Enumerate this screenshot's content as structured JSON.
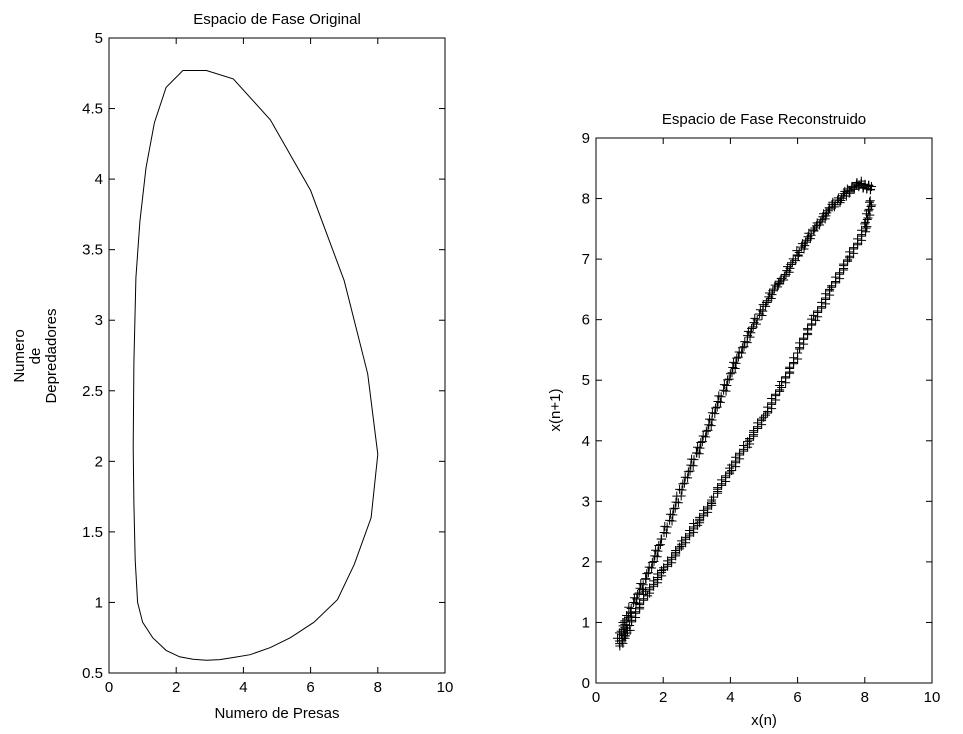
{
  "chart_data": [
    {
      "type": "line",
      "title": "Espacio de Fase Original",
      "xlabel": "Numero de Presas",
      "ylabel_lines": [
        "Numero",
        "de",
        "Depredadores"
      ],
      "xlim": [
        0,
        10
      ],
      "ylim": [
        0.5,
        5
      ],
      "xticks": [
        "0",
        "2",
        "4",
        "6",
        "8",
        "10"
      ],
      "yticks": [
        "0.5",
        "1",
        "1.5",
        "2",
        "2.5",
        "3",
        "3.5",
        "4",
        "4.5",
        "5"
      ],
      "grid": false,
      "line_color": "#000000",
      "x": [
        2.9,
        3.7,
        4.8,
        6.0,
        7.0,
        7.7,
        8.0,
        7.8,
        7.3,
        6.8,
        6.1,
        5.4,
        4.8,
        4.2,
        3.7,
        3.3,
        2.9,
        2.5,
        2.1,
        1.7,
        1.3,
        1.0,
        0.85,
        0.78,
        0.74,
        0.72,
        0.74,
        0.8,
        0.92,
        1.1,
        1.35,
        1.7,
        2.2,
        2.9
      ],
      "y": [
        4.77,
        4.71,
        4.42,
        3.92,
        3.28,
        2.62,
        2.05,
        1.6,
        1.27,
        1.02,
        0.86,
        0.75,
        0.68,
        0.63,
        0.61,
        0.595,
        0.59,
        0.597,
        0.615,
        0.66,
        0.75,
        0.86,
        1.0,
        1.3,
        1.7,
        2.1,
        2.7,
        3.3,
        3.7,
        4.08,
        4.4,
        4.65,
        4.77,
        4.77
      ]
    },
    {
      "type": "scatter",
      "title": "Espacio de Fase Reconstruido",
      "xlabel": "x(n)",
      "ylabel": "x(n+1)",
      "xlim": [
        0,
        10
      ],
      "ylim": [
        0,
        9
      ],
      "xticks": [
        "0",
        "2",
        "4",
        "6",
        "8",
        "10"
      ],
      "yticks": [
        "0",
        "1",
        "2",
        "3",
        "4",
        "5",
        "6",
        "7",
        "8",
        "9"
      ],
      "grid": false,
      "marker": "+",
      "marker_color": "#000000",
      "upper_branch": {
        "x": [
          0.7,
          1.0,
          1.5,
          2.0,
          2.5,
          3.0,
          3.5,
          4.0,
          4.5,
          5.0,
          5.5,
          6.0,
          6.5,
          7.0,
          7.5,
          7.9,
          8.2
        ],
        "y": [
          0.8,
          1.2,
          1.75,
          2.4,
          3.1,
          3.8,
          4.45,
          5.1,
          5.7,
          6.2,
          6.65,
          7.1,
          7.5,
          7.85,
          8.1,
          8.25,
          8.2
        ]
      },
      "lower_branch": {
        "x": [
          8.2,
          8.0,
          7.5,
          7.0,
          6.5,
          6.0,
          5.5,
          5.0,
          4.5,
          4.0,
          3.5,
          3.0,
          2.5,
          2.0,
          1.5,
          1.0,
          0.7
        ],
        "y": [
          8.0,
          7.5,
          7.0,
          6.5,
          6.0,
          5.45,
          4.9,
          4.4,
          3.95,
          3.5,
          3.05,
          2.65,
          2.25,
          1.85,
          1.45,
          0.95,
          0.65
        ]
      }
    }
  ]
}
